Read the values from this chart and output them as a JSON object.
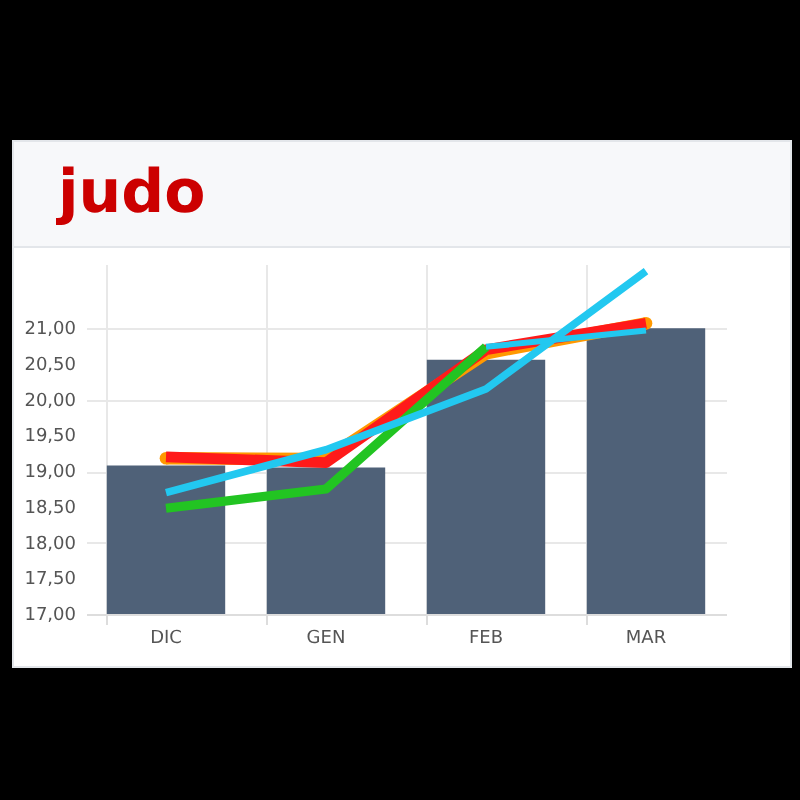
{
  "chart_data": {
    "type": "bar",
    "title": "judo",
    "categories": [
      "DIC",
      "GEN",
      "FEB",
      "MAR"
    ],
    "color": "#4f6178",
    "values": [
      19.08,
      19.05,
      20.56,
      21.0
    ],
    "series": [
      {
        "type": "line",
        "color": "#ff9900",
        "marker": "circle",
        "values": [
          19.18,
          19.17,
          20.65,
          21.07
        ]
      },
      {
        "type": "line",
        "color": "#ff1a1a",
        "values": [
          19.2,
          19.12,
          20.7,
          21.07
        ]
      },
      {
        "type": "line",
        "color": "#22c422",
        "values": [
          18.48,
          18.75,
          20.74,
          null
        ]
      },
      {
        "type": "line",
        "color": "#22c8f0",
        "values": [
          18.7,
          19.3,
          20.15,
          21.8
        ]
      },
      {
        "type": "line",
        "color": "#22c8f0",
        "values": [
          null,
          null,
          20.74,
          20.97
        ]
      }
    ],
    "ylim": [
      17,
      21.9
    ],
    "yticks": [
      {
        "value": 17,
        "label": "17,00"
      },
      {
        "value": 17.5,
        "label": "17,50"
      },
      {
        "value": 18,
        "label": "18,00"
      },
      {
        "value": 18.5,
        "label": "18,50"
      },
      {
        "value": 19,
        "label": "19,00"
      },
      {
        "value": 19.5,
        "label": "19,50"
      },
      {
        "value": 20,
        "label": "20,00"
      },
      {
        "value": 20.5,
        "label": "20,50"
      },
      {
        "value": 21,
        "label": "21,00"
      }
    ],
    "grid": true
  }
}
